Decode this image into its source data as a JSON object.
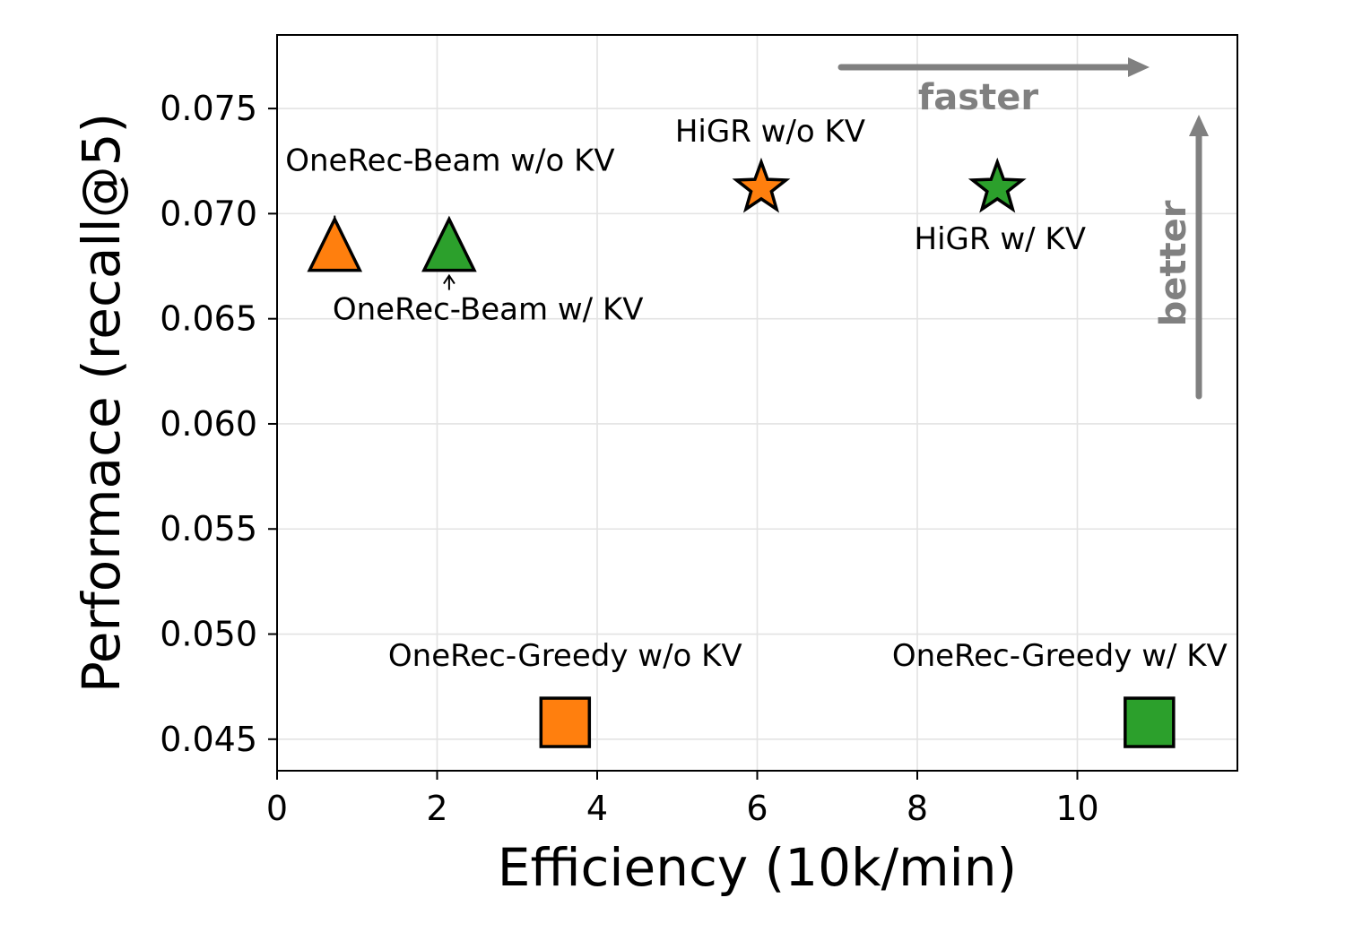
{
  "chart_data": {
    "type": "scatter",
    "title": "",
    "xlabel": "Efficiency (10k/min)",
    "ylabel": "Performace (recall@5)",
    "xlim": [
      0,
      12
    ],
    "ylim": [
      0.0435,
      0.0785
    ],
    "xticks": [
      0,
      2,
      4,
      6,
      8,
      10
    ],
    "yticks": [
      0.045,
      0.05,
      0.055,
      0.06,
      0.065,
      0.07,
      0.075
    ],
    "grid": true,
    "colors": {
      "without_kv": "#ff7f0e",
      "with_kv": "#2ca02c",
      "hint": "#808080"
    },
    "points": [
      {
        "label": "OneRec-Beam w/o KV",
        "x": 0.72,
        "y": 0.0685,
        "marker": "triangle",
        "color": "#ff7f0e"
      },
      {
        "label": "OneRec-Beam w/ KV",
        "x": 2.15,
        "y": 0.0685,
        "marker": "triangle",
        "color": "#2ca02c"
      },
      {
        "label": "HiGR w/o KV",
        "x": 6.05,
        "y": 0.0713,
        "marker": "star",
        "color": "#ff7f0e"
      },
      {
        "label": "HiGR w/ KV",
        "x": 9.0,
        "y": 0.0713,
        "marker": "star",
        "color": "#2ca02c"
      },
      {
        "label": "OneRec-Greedy w/o KV",
        "x": 3.6,
        "y": 0.0458,
        "marker": "square",
        "color": "#ff7f0e"
      },
      {
        "label": "OneRec-Greedy w/ KV",
        "x": 10.9,
        "y": 0.0458,
        "marker": "square",
        "color": "#2ca02c"
      }
    ],
    "hints": {
      "faster": "faster",
      "better": "better"
    }
  }
}
